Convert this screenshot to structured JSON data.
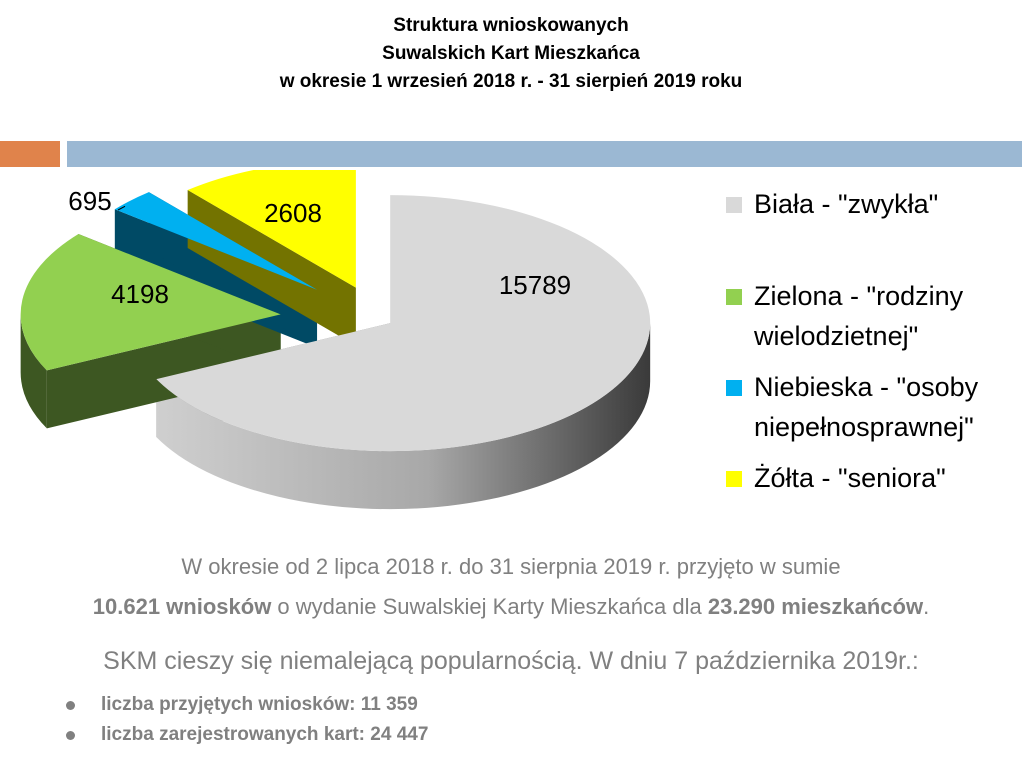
{
  "title": {
    "line1": "Struktura wnioskowanych",
    "line2": "Suwalskich Kart Mieszkańca",
    "line3": "w okresie 1 wrzesień 2018 r. - 31 sierpień 2019 roku"
  },
  "decor": {
    "orange": "#E0834B",
    "blue": "#9BB8D3"
  },
  "chart_data": {
    "type": "pie",
    "title": "Struktura wnioskowanych Suwalskich Kart Mieszkańca w okresie 1 wrzesień 2018 r. - 31 sierpień 2019 roku",
    "legend_position": "right",
    "slices": [
      {
        "label": "Biała - \"zwykła\"",
        "value": 15789,
        "color": "#D9D9D9",
        "value_label": "15789"
      },
      {
        "label": "Zielona - \"rodziny wielodzietnej\"",
        "value": 4198,
        "color": "#92D050",
        "value_label": "4198"
      },
      {
        "label": "Niebieska - \"osoby niepełnosprawnej\"",
        "value": 695,
        "color": "#00B0F0",
        "value_label": "695"
      },
      {
        "label": "Żółta - \"seniora\"",
        "value": 2608,
        "color": "#FFFF00",
        "value_label": "2608"
      }
    ]
  },
  "legend": [
    {
      "line1": "Biała - \"zwykła\"",
      "line2": ""
    },
    {
      "line1": "Zielona - \"rodziny",
      "line2": "wielodzietnej\""
    },
    {
      "line1": "Niebieska - \"osoby",
      "line2": "niepełnosprawnej\""
    },
    {
      "line1": "Żółta - \"seniora\"",
      "line2": ""
    }
  ],
  "summary": {
    "line1": "W okresie od 2 lipca 2018 r. do 31 sierpnia 2019 r. przyjęto w sumie",
    "line2_bold1": "10.621 wniosków",
    "line2_mid": " o wydanie Suwalskiej Karty Mieszkańca dla ",
    "line2_bold2": "23.290 mieszkańców",
    "line2_end": ".",
    "line3": "SKM cieszy się niemalejącą popularnością. W dniu 7 października 2019r.:",
    "bullets": [
      "liczba przyjętych wniosków: 11 359",
      "liczba zarejestrowanych kart: 24 447"
    ]
  }
}
